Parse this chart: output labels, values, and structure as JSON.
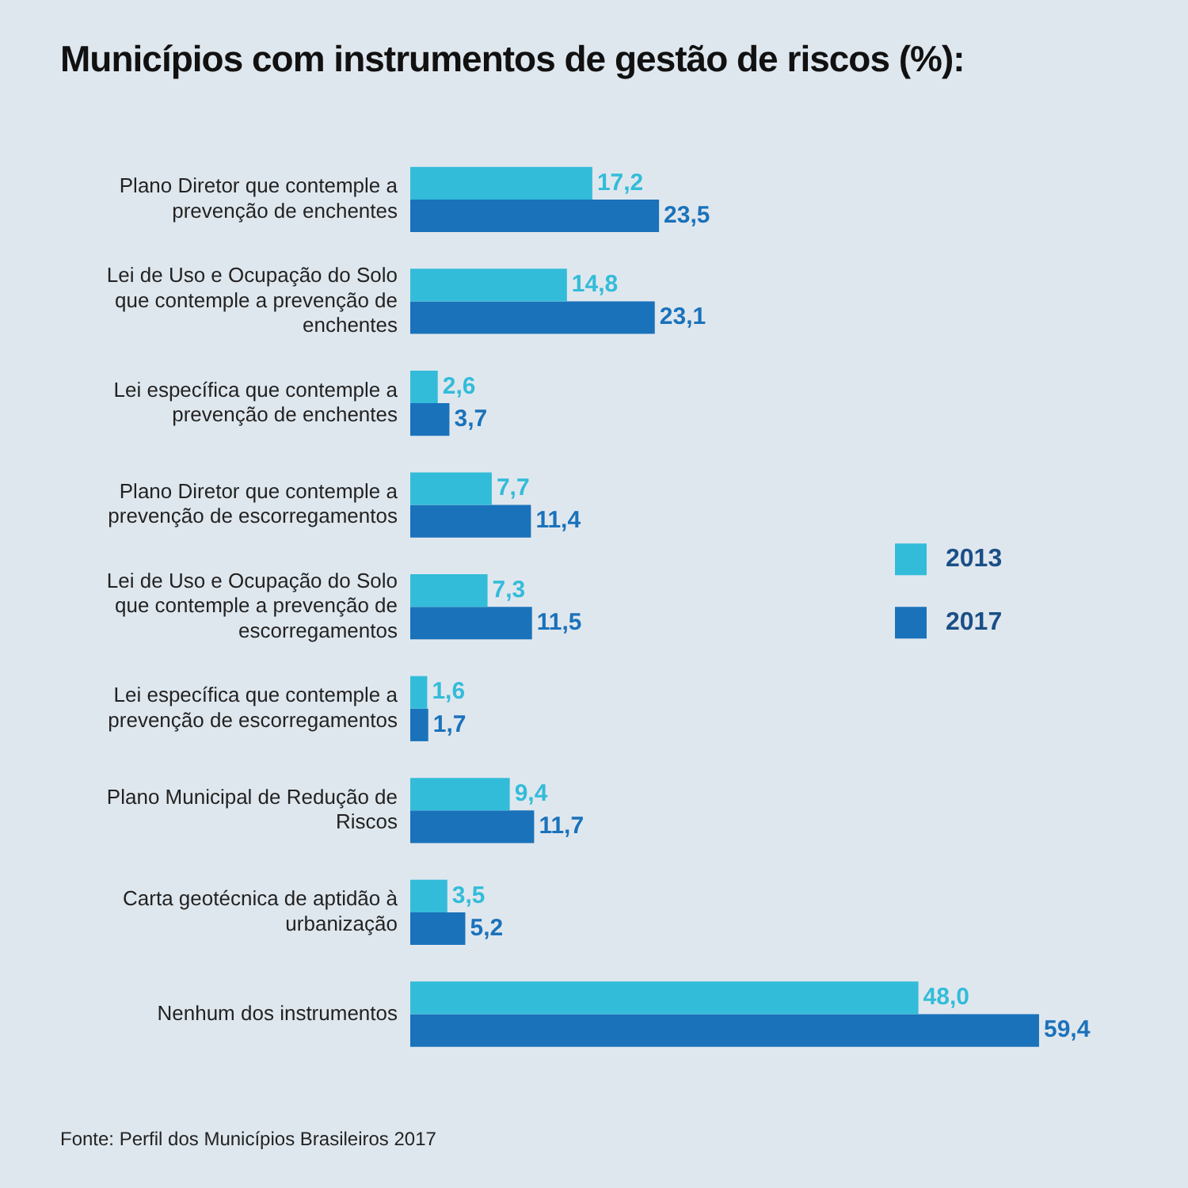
{
  "chart_data": {
    "type": "bar",
    "orientation": "horizontal",
    "title": "Municípios com instrumentos de gestão de riscos (%):",
    "categories": [
      "Plano Diretor que contemple a prevenção de enchentes",
      "Lei de Uso e Ocupação do Solo que contemple a prevenção de enchentes",
      "Lei específica que contemple a prevenção de enchentes",
      "Plano Diretor que contemple a prevenção de escorregamentos",
      "Lei de Uso e Ocupação do Solo que contemple a prevenção de escorregamentos",
      "Lei específica que contemple a prevenção de escorregamentos",
      "Plano Municipal de Redução de Riscos",
      "Carta geotécnica de aptidão à urbanização",
      "Nenhum dos instrumentos"
    ],
    "series": [
      {
        "name": "2013",
        "color": "#33bcd9",
        "values": [
          17.2,
          14.8,
          2.6,
          7.7,
          7.3,
          1.6,
          9.4,
          3.5,
          48.0
        ],
        "value_labels": [
          "17,2",
          "14,8",
          "2,6",
          "7,7",
          "7,3",
          "1,6",
          "9,4",
          "3,5",
          "48,0"
        ]
      },
      {
        "name": "2017",
        "color": "#1a72bb",
        "values": [
          23.5,
          23.1,
          3.7,
          11.4,
          11.5,
          1.7,
          11.7,
          5.2,
          59.4
        ],
        "value_labels": [
          "23,5",
          "23,1",
          "3,7",
          "11,4",
          "11,5",
          "1,7",
          "11,7",
          "5,2",
          "59,4"
        ]
      }
    ],
    "legend": "right",
    "grid": false,
    "tick_labels": "y",
    "annotations": [
      "Fonte: Perfil dos Municípios Brasileiros 2017"
    ]
  }
}
